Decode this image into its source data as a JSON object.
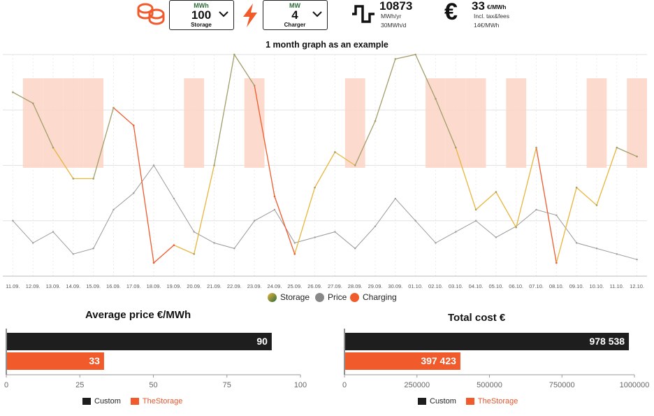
{
  "header": {
    "storage_selector": {
      "unit": "MWh",
      "value": "100",
      "label": "Storage"
    },
    "charger_selector": {
      "unit": "MW",
      "value": "4",
      "label": "Charger"
    },
    "energy": {
      "value": "10873",
      "unit_line": "MWh/yr",
      "sub_line": "30MWh/d"
    },
    "price": {
      "value": "33",
      "unit": "€/MWh",
      "line1": "Incl. tax&fees",
      "line2": "14€/MWh"
    },
    "icons": [
      "storage-coins-icon",
      "lightning-bolt-icon",
      "energy-step-icon",
      "euro-icon",
      "chevron-down-icon"
    ]
  },
  "main_chart": {
    "title": "1 month graph as an example",
    "x_ticks": [
      "11.09.",
      "12.09.",
      "13.09.",
      "14.09.",
      "15.09.",
      "16.09.",
      "17.09.",
      "18.09.",
      "19.09.",
      "20.09.",
      "21.09.",
      "22.09.",
      "23.09.",
      "24.09.",
      "25.09.",
      "26.09.",
      "27.09.",
      "28.09.",
      "29.09.",
      "30.09.",
      "01.10.",
      "02.10.",
      "03.10.",
      "04.10.",
      "05.10.",
      "06.10.",
      "07.10.",
      "08.10.",
      "09.10.",
      "10.10.",
      "11.10.",
      "12.10."
    ],
    "legend": [
      {
        "name": "Storage",
        "color": "#a39d6a"
      },
      {
        "name": "Price",
        "color": "#888888"
      },
      {
        "name": "Charging",
        "color": "#f15a2b"
      }
    ]
  },
  "chart_data": [
    {
      "type": "line",
      "title": "1 month graph as an example",
      "x": [
        "11.09.",
        "12.09.",
        "13.09.",
        "14.09.",
        "15.09.",
        "16.09.",
        "17.09.",
        "18.09.",
        "19.09.",
        "20.09.",
        "21.09.",
        "22.09.",
        "23.09.",
        "24.09.",
        "25.09.",
        "26.09.",
        "27.09.",
        "28.09.",
        "29.09.",
        "30.09.",
        "01.10.",
        "02.10.",
        "03.10.",
        "04.10.",
        "05.10.",
        "06.10.",
        "07.10.",
        "08.10.",
        "09.10.",
        "10.10.",
        "11.10.",
        "12.10."
      ],
      "series": [
        {
          "name": "Storage",
          "values": [
            83,
            78,
            58,
            44,
            44,
            76,
            68,
            6,
            14,
            10,
            50,
            100,
            86,
            36,
            10,
            40,
            56,
            50,
            70,
            98,
            100,
            80,
            58,
            30,
            38,
            22,
            58,
            6,
            40,
            32,
            58,
            54
          ]
        },
        {
          "name": "Price",
          "values": [
            10,
            6,
            8,
            4,
            5,
            12,
            15,
            20,
            14,
            8,
            6,
            5,
            10,
            12,
            6,
            7,
            8,
            5,
            9,
            14,
            10,
            6,
            8,
            10,
            7,
            9,
            12,
            11,
            6,
            5,
            4,
            3
          ]
        },
        {
          "name": "Charging",
          "values": [
            0,
            0,
            0,
            0,
            0,
            0,
            1,
            1,
            1,
            0,
            0,
            0,
            0,
            1,
            1,
            0,
            0,
            0,
            0,
            0,
            0,
            0,
            0,
            0,
            0,
            0,
            0,
            1,
            0,
            0,
            0,
            0
          ]
        }
      ]
    },
    {
      "type": "bar",
      "title": "Average price €/MWh",
      "categories": [
        "Custom",
        "TheStorage"
      ],
      "values": [
        90,
        33
      ],
      "value_labels": [
        "90",
        "33"
      ],
      "xlim": [
        0,
        100
      ],
      "x_ticks": [
        "0",
        "25",
        "50",
        "75",
        "100"
      ],
      "colors": [
        "#1e1e1e",
        "#f15a2b"
      ]
    },
    {
      "type": "bar",
      "title": "Total cost €",
      "categories": [
        "Custom",
        "TheStorage"
      ],
      "values": [
        978538,
        397423
      ],
      "value_labels": [
        "978 538",
        "397 423"
      ],
      "xlim": [
        0,
        1000000
      ],
      "x_ticks": [
        "0",
        "250000",
        "500000",
        "750000",
        "1000000"
      ],
      "colors": [
        "#1e1e1e",
        "#f15a2b"
      ]
    }
  ]
}
